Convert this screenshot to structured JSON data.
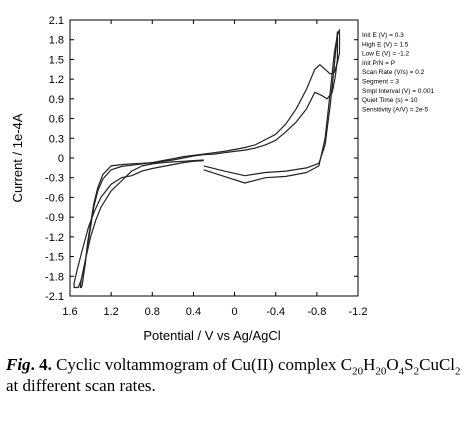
{
  "chart_data": {
    "type": "line",
    "xlabel": "Potential / V vs Ag/AgCl",
    "ylabel": "Current / 1e-4A",
    "xlim": [
      1.6,
      -1.2
    ],
    "ylim": [
      -2.1,
      2.1
    ],
    "x_inverted": true,
    "x_ticks": [
      "1.6",
      "1.2",
      "0.8",
      "0.4",
      "0",
      "-0.4",
      "-0.8",
      "-1.2"
    ],
    "x_tick_values": [
      1.6,
      1.2,
      0.8,
      0.4,
      0,
      -0.4,
      -0.8,
      -1.2
    ],
    "y_ticks": [
      "2.1",
      "1.8",
      "1.5",
      "1.2",
      "0.9",
      "0.6",
      "0.3",
      "0",
      "-0.3",
      "-0.6",
      "-0.9",
      "-1.2",
      "-1.5",
      "-1.8",
      "-2.1"
    ],
    "y_tick_values": [
      2.1,
      1.8,
      1.5,
      1.2,
      0.9,
      0.6,
      0.3,
      0,
      -0.3,
      -0.6,
      -0.9,
      -1.2,
      -1.5,
      -1.8,
      -2.1
    ],
    "grid": false,
    "legend": "none",
    "line_color": "#222222",
    "series": [
      {
        "x": [
          0.3,
          0.1,
          -0.1,
          -0.3,
          -0.5,
          -0.7,
          -0.82,
          -0.88,
          -0.93,
          -0.97,
          -0.99,
          -1.0,
          -1.0,
          -0.98,
          -0.95,
          -0.9,
          -0.85,
          -0.78,
          -0.7,
          -0.6,
          -0.5,
          -0.4,
          -0.3,
          -0.2,
          -0.1,
          0.0,
          0.1,
          0.2,
          0.3,
          0.4,
          0.5,
          0.6,
          0.7,
          0.8,
          0.9,
          1.0,
          1.1,
          1.2,
          1.28,
          1.33,
          1.37,
          1.4,
          1.43,
          1.45,
          1.47,
          1.48,
          1.49,
          1.5,
          1.49,
          1.45,
          1.4,
          1.35,
          1.3,
          1.2,
          1.1,
          1.0,
          0.9,
          0.8,
          0.7,
          0.6,
          0.5,
          0.4,
          0.3
        ],
        "y": [
          -0.12,
          -0.2,
          -0.27,
          -0.22,
          -0.2,
          -0.15,
          -0.08,
          0.2,
          0.8,
          1.4,
          1.75,
          1.92,
          1.5,
          1.25,
          1.0,
          0.9,
          0.95,
          1.0,
          0.75,
          0.55,
          0.4,
          0.27,
          0.2,
          0.15,
          0.12,
          0.1,
          0.08,
          0.06,
          0.05,
          0.03,
          0.0,
          -0.03,
          -0.05,
          -0.07,
          -0.08,
          -0.09,
          -0.1,
          -0.12,
          -0.25,
          -0.45,
          -0.7,
          -1.0,
          -1.3,
          -1.6,
          -1.8,
          -1.93,
          -1.97,
          -1.97,
          -1.85,
          -1.55,
          -1.2,
          -0.95,
          -0.75,
          -0.5,
          -0.35,
          -0.2,
          -0.12,
          -0.09,
          -0.07,
          -0.06,
          -0.05,
          -0.04,
          -0.03
        ]
      },
      {
        "x": [
          0.3,
          0.1,
          -0.1,
          -0.3,
          -0.5,
          -0.7,
          -0.82,
          -0.88,
          -0.93,
          -0.97,
          -1.0,
          -1.02,
          -1.02,
          -1.0,
          -0.97,
          -0.93,
          -0.88,
          -0.83,
          -0.78,
          -0.7,
          -0.6,
          -0.5,
          -0.4,
          -0.3,
          -0.2,
          -0.1,
          0.0,
          0.1,
          0.2,
          0.3,
          0.4,
          0.5,
          0.6,
          0.7,
          0.8,
          0.9,
          1.0,
          1.1,
          1.2,
          1.28,
          1.33,
          1.37,
          1.4,
          1.43,
          1.46,
          1.49,
          1.52,
          1.55,
          1.56,
          1.56,
          1.53,
          1.48,
          1.42,
          1.36,
          1.3,
          1.2,
          1.1,
          1.0,
          0.9,
          0.8,
          0.7,
          0.6,
          0.5,
          0.4,
          0.3
        ],
        "y": [
          -0.18,
          -0.28,
          -0.38,
          -0.3,
          -0.28,
          -0.22,
          -0.12,
          0.3,
          1.0,
          1.6,
          1.87,
          1.95,
          1.6,
          1.45,
          1.3,
          1.28,
          1.35,
          1.42,
          1.35,
          1.05,
          0.75,
          0.52,
          0.36,
          0.28,
          0.2,
          0.16,
          0.13,
          0.1,
          0.08,
          0.06,
          0.04,
          0.02,
          -0.01,
          -0.04,
          -0.07,
          -0.09,
          -0.11,
          -0.13,
          -0.18,
          -0.32,
          -0.5,
          -0.75,
          -1.05,
          -1.35,
          -1.65,
          -1.85,
          -1.97,
          -1.97,
          -1.97,
          -1.9,
          -1.7,
          -1.4,
          -1.05,
          -0.8,
          -0.6,
          -0.4,
          -0.3,
          -0.27,
          -0.2,
          -0.16,
          -0.13,
          -0.1,
          -0.07,
          -0.05,
          -0.04
        ]
      }
    ],
    "parameters": [
      "Init E (V) = 0.3",
      "High E (V) = 1.5",
      "Low E (V) = -1.2",
      "Init P/N = P",
      "Scan Rate (V/s) = 0.2",
      "Segment = 3",
      "Smpl Interval (V) = 0.001",
      "Quiet Time (s) = 10",
      "Sensitivity (A/V) = 2e-5"
    ]
  },
  "caption": {
    "label": "Fig",
    "number": ". 4.",
    "text_before": " Cyclic voltammogram of Cu(II) complex C",
    "formula": [
      {
        "t": "20",
        "sub": true
      },
      {
        "t": "H",
        "sub": false
      },
      {
        "t": "20",
        "sub": true
      },
      {
        "t": "O",
        "sub": false
      },
      {
        "t": "4",
        "sub": true
      },
      {
        "t": "S",
        "sub": false
      },
      {
        "t": "2",
        "sub": true
      },
      {
        "t": "CuCl",
        "sub": false
      },
      {
        "t": "2",
        "sub": true
      }
    ],
    "text_after": " at different scan rates."
  }
}
